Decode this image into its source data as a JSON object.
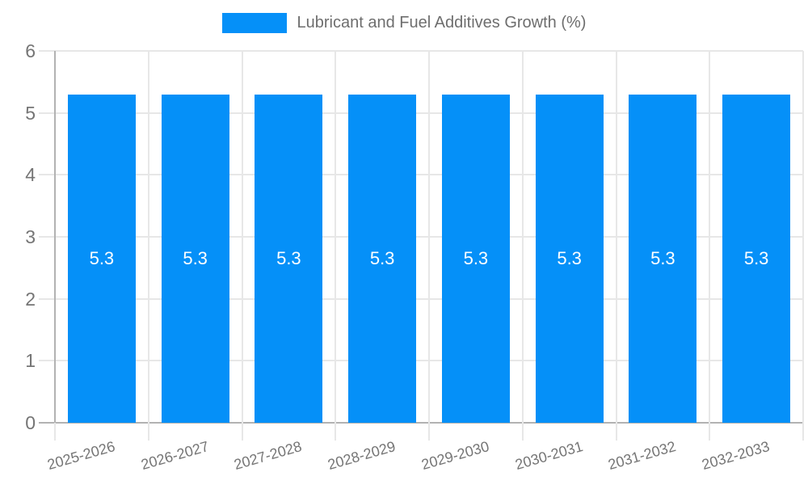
{
  "chart_data": {
    "type": "bar",
    "title": "Lubricant and Fuel Additives Growth (%)",
    "categories": [
      "2025-2026",
      "2026-2027",
      "2027-2028",
      "2028-2029",
      "2029-2030",
      "2030-2031",
      "2031-2032",
      "2032-2033"
    ],
    "values": [
      5.3,
      5.3,
      5.3,
      5.3,
      5.3,
      5.3,
      5.3,
      5.3
    ],
    "value_labels": [
      "5.3",
      "5.3",
      "5.3",
      "5.3",
      "5.3",
      "5.3",
      "5.3",
      "5.3"
    ],
    "xlabel": "",
    "ylabel": "",
    "ylim": [
      0,
      6
    ],
    "yticks": [
      0,
      1,
      2,
      3,
      4,
      5,
      6
    ],
    "grid": true,
    "legend_position": "top-center",
    "x_label_rotation_deg": -16,
    "bar_color": "#0590f8",
    "bar_label_color": "#ffffff",
    "axis_text_color": "#757575",
    "legend_text_color": "#6e6e6e",
    "grid_color": "#e7e7e7",
    "axis_line_color": "#b2b2b2"
  }
}
